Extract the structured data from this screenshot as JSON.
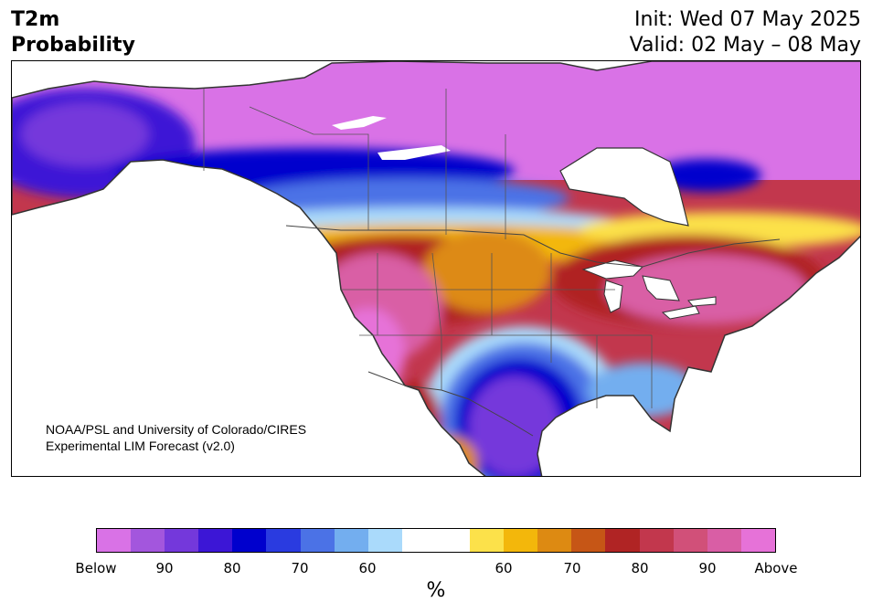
{
  "header": {
    "title_line1": "T2m",
    "title_line2": "Probability",
    "init": "Init: Wed 07 May 2025",
    "valid": "Valid: 02 May – 08 May"
  },
  "credit": {
    "line1": "NOAA/PSL and University of Colorado/CIRES",
    "line2": "Experimental LIM Forecast (v2.0)"
  },
  "colorbar": {
    "below_colors": [
      "#d972e6",
      "#a356dd",
      "#7438db",
      "#3c16d6",
      "#0000cd",
      "#2a3be0",
      "#4b72e6",
      "#73aeef",
      "#aadafb"
    ],
    "neutral_color": "#ffffff",
    "above_colors": [
      "#fce14a",
      "#f3b70b",
      "#dd8a12",
      "#c65616",
      "#b02424",
      "#c2374d",
      "#d15079",
      "#d95ea5",
      "#e672d8"
    ],
    "tick_labels": [
      "Below",
      "90",
      "80",
      "70",
      "60",
      "60",
      "70",
      "80",
      "90",
      "Above"
    ],
    "unit": "%"
  },
  "map": {
    "region": "North America",
    "features": [
      "coastlines",
      "country-borders",
      "state-province-borders",
      "great-lakes"
    ]
  }
}
